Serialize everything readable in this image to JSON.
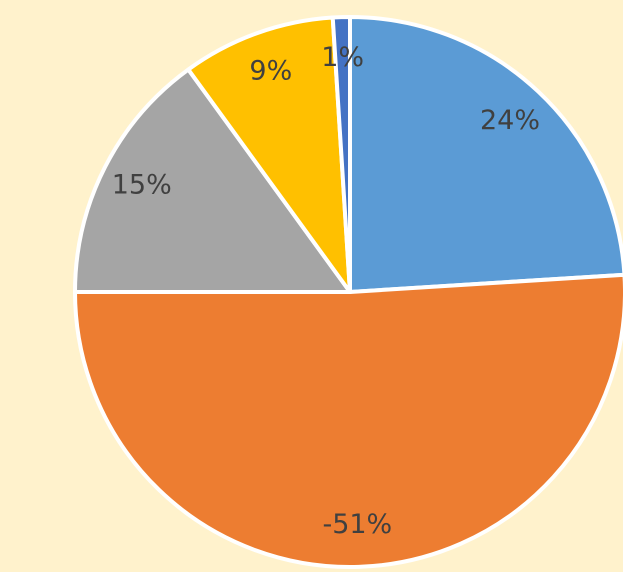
{
  "chart_data": {
    "type": "pie",
    "values": [
      24,
      -51,
      15,
      9,
      1
    ],
    "value_labels": [
      "24%",
      "-51%",
      "15%",
      "9%",
      "1%"
    ],
    "colors": [
      "#5b9bd5",
      "#ed7d31",
      "#a5a5a5",
      "#ffc000",
      "#4472c4"
    ]
  }
}
